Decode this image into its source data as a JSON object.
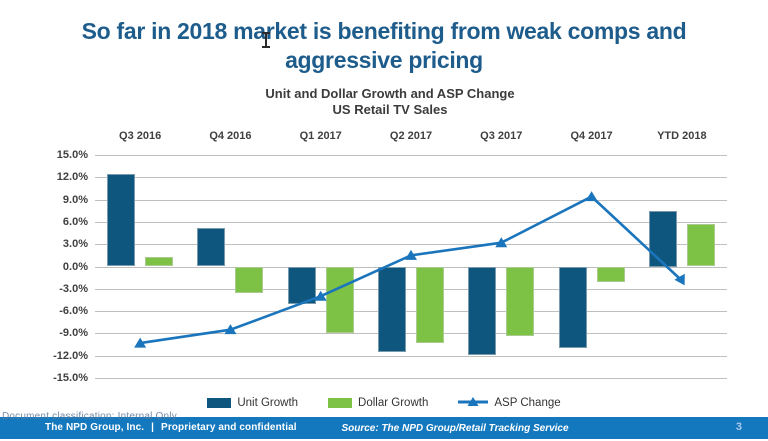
{
  "slide_title": "So far in 2018 market is benefiting from weak comps and aggressive pricing",
  "chart_data": {
    "type": "bar+line",
    "title": "Unit and Dollar Growth and ASP Change",
    "subtitle": "US Retail TV Sales",
    "categories": [
      "Q3 2016",
      "Q4 2016",
      "Q1 2017",
      "Q2 2017",
      "Q3 2017",
      "Q4 2017",
      "YTD 2018"
    ],
    "series": [
      {
        "name": "Unit Growth",
        "type": "bar",
        "color": "#0E567E",
        "values": [
          12.5,
          5.2,
          -5.1,
          -11.5,
          -11.9,
          -11.0,
          7.5
        ]
      },
      {
        "name": "Dollar Growth",
        "type": "bar",
        "color": "#7DC245",
        "values": [
          1.3,
          -3.6,
          -8.9,
          -10.3,
          -9.3,
          -2.1,
          5.7
        ]
      },
      {
        "name": "ASP Change",
        "type": "line",
        "color": "#1B75BC",
        "values": [
          -10.3,
          -8.5,
          -4.0,
          1.5,
          3.2,
          9.4,
          -1.9
        ]
      }
    ],
    "ylim": [
      -15,
      15
    ],
    "ytick_step": 3,
    "ytick_suffix": "%",
    "grid": true,
    "legend_position": "bottom"
  },
  "legend": {
    "unit_growth": "Unit Growth",
    "dollar_growth": "Dollar Growth",
    "asp_change": "ASP Change"
  },
  "footer": {
    "org": "The NPD Group, Inc.",
    "separator": "|",
    "note": "Proprietary and confidential",
    "source": "Source: The NPD Group/Retail Tracking Service",
    "page_number": "3",
    "watermark": "Document classification: Internal Only"
  },
  "colors": {
    "title_blue": "#1E5C8C",
    "unit_bar": "#0E567E",
    "dollar_bar": "#7DC245",
    "asp_line": "#1B75BC",
    "gridline": "#BFBFBF",
    "axis_text": "#404040",
    "footer_bar": "#1478BE",
    "page_number_text": "#A8C8E8"
  }
}
